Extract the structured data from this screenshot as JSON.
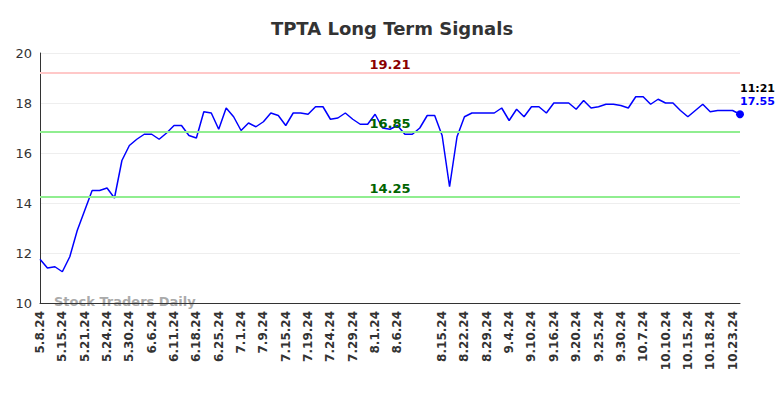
{
  "chart_data": {
    "type": "line",
    "title": "TPTA Long Term Signals",
    "color": "#0000ff",
    "grid": true,
    "ylim": [
      10,
      20
    ],
    "yticks": [
      10,
      12,
      14,
      16,
      18,
      20
    ],
    "categories": [
      "5.8.24",
      null,
      null,
      "5.15.24",
      null,
      null,
      "5.21.24",
      null,
      null,
      "5.24.24",
      null,
      null,
      "5.30.24",
      null,
      null,
      "6.6.24",
      null,
      null,
      "6.11.24",
      null,
      null,
      "6.18.24",
      null,
      null,
      "6.25.24",
      null,
      null,
      "7.1.24",
      null,
      null,
      "7.9.24",
      null,
      null,
      "7.15.24",
      null,
      null,
      "7.19.24",
      null,
      null,
      "7.24.24",
      null,
      null,
      "7.29.24",
      null,
      null,
      "8.1.24",
      null,
      null,
      "8.6.24",
      null,
      null,
      null,
      null,
      null,
      "8.15.24",
      null,
      null,
      "8.22.24",
      null,
      null,
      "8.29.24",
      null,
      null,
      "9.4.24",
      null,
      null,
      "9.10.24",
      null,
      null,
      "9.16.24",
      null,
      null,
      "9.20.24",
      null,
      null,
      "9.25.24",
      null,
      null,
      "9.30.24",
      null,
      null,
      "10.7.24",
      null,
      null,
      "10.10.24",
      null,
      null,
      "10.15.24",
      null,
      null,
      "10.18.24",
      null,
      null,
      "10.23.24",
      null
    ],
    "values": [
      11.75,
      11.4,
      11.45,
      11.25,
      11.85,
      12.9,
      13.7,
      14.5,
      14.5,
      14.6,
      14.2,
      15.7,
      16.3,
      16.55,
      16.75,
      16.75,
      16.55,
      16.8,
      17.1,
      17.1,
      16.7,
      16.6,
      17.65,
      17.6,
      16.95,
      17.8,
      17.45,
      16.9,
      17.2,
      17.05,
      17.25,
      17.6,
      17.5,
      17.1,
      17.6,
      17.6,
      17.55,
      17.85,
      17.85,
      17.35,
      17.4,
      17.6,
      17.35,
      17.15,
      17.15,
      17.55,
      17.0,
      16.95,
      17.1,
      16.75,
      16.75,
      17.0,
      17.5,
      17.5,
      16.7,
      14.65,
      16.65,
      17.45,
      17.6,
      17.6,
      17.6,
      17.6,
      17.8,
      17.3,
      17.75,
      17.45,
      17.85,
      17.85,
      17.6,
      18.0,
      18.0,
      18.0,
      17.75,
      18.1,
      17.8,
      17.85,
      17.95,
      17.95,
      17.9,
      17.8,
      18.25,
      18.25,
      17.95,
      18.15,
      18.0,
      18.0,
      17.7,
      17.45,
      17.7,
      17.95,
      17.65,
      17.7,
      17.7,
      17.7,
      17.55
    ],
    "reference_lines": [
      {
        "value": 19.21,
        "label": "19.21",
        "color": "#ffc8c8"
      },
      {
        "value": 16.85,
        "label": "16.85",
        "color": "#90ee90"
      },
      {
        "value": 14.25,
        "label": "14.25",
        "color": "#90ee90"
      }
    ],
    "last_label": "11:21",
    "watermark": "Stock Traders Daily"
  }
}
